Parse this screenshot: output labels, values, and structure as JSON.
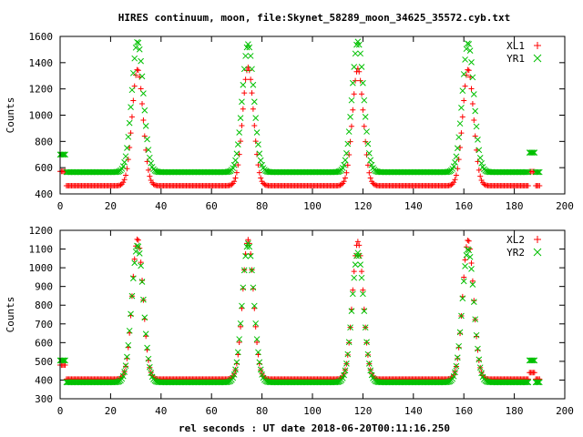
{
  "title": "HIRES continuum, moon, file:Skynet_58289_moon_34625_35572.cyb.txt",
  "xlabel": "rel seconds : UT date 2018-06-20T00:11:16.250",
  "colors": {
    "red": "#ff0000",
    "green": "#00c000"
  },
  "chart_data": [
    {
      "type": "scatter",
      "ylabel": "Counts",
      "xlim": [
        0,
        200
      ],
      "ylim": [
        400,
        1600
      ],
      "xticks": [
        0,
        20,
        40,
        60,
        80,
        100,
        120,
        140,
        160,
        180,
        200
      ],
      "yticks": [
        400,
        600,
        800,
        1000,
        1200,
        1400,
        1600
      ],
      "legend_position": "top-right",
      "series": [
        {
          "name": "XL1",
          "marker": "plus",
          "color": "#ff0000",
          "baseline": 462,
          "gaps": [
            [
              0,
              2,
              572
            ],
            [
              186,
              188,
              570
            ]
          ],
          "peaks": [
            {
              "x": 30.7,
              "y": 1350,
              "halfwidth": 4.5
            },
            {
              "x": 74.5,
              "y": 1365,
              "halfwidth": 4.5
            },
            {
              "x": 118.0,
              "y": 1355,
              "halfwidth": 4.5
            },
            {
              "x": 161.7,
              "y": 1350,
              "halfwidth": 4.5
            }
          ],
          "x_range": [
            0,
            190
          ]
        },
        {
          "name": "YR1",
          "marker": "cross",
          "color": "#00c000",
          "baseline": 566,
          "gaps": [
            [
              0,
              2,
              700
            ],
            [
              186,
              188,
              715
            ]
          ],
          "peaks": [
            {
              "x": 30.7,
              "y": 1560,
              "halfwidth": 4.8
            },
            {
              "x": 74.5,
              "y": 1540,
              "halfwidth": 4.8
            },
            {
              "x": 118.0,
              "y": 1560,
              "halfwidth": 4.8
            },
            {
              "x": 161.7,
              "y": 1550,
              "halfwidth": 4.8
            }
          ],
          "x_range": [
            0,
            190
          ]
        }
      ]
    },
    {
      "type": "scatter",
      "ylabel": "Counts",
      "xlim": [
        0,
        200
      ],
      "ylim": [
        300,
        1200
      ],
      "xticks": [
        0,
        20,
        40,
        60,
        80,
        100,
        120,
        140,
        160,
        180,
        200
      ],
      "yticks": [
        300,
        400,
        500,
        600,
        700,
        800,
        900,
        1000,
        1100,
        1200
      ],
      "legend_position": "top-right",
      "series": [
        {
          "name": "XL2",
          "marker": "plus",
          "color": "#ff0000",
          "baseline": 405,
          "gaps": [
            [
              0,
              2,
              480
            ],
            [
              186,
              188,
              440
            ]
          ],
          "peaks": [
            {
              "x": 30.7,
              "y": 1155,
              "halfwidth": 4.5
            },
            {
              "x": 74.5,
              "y": 1150,
              "halfwidth": 4.5
            },
            {
              "x": 118.0,
              "y": 1140,
              "halfwidth": 4.5
            },
            {
              "x": 161.7,
              "y": 1150,
              "halfwidth": 4.5
            }
          ],
          "x_range": [
            0,
            190
          ]
        },
        {
          "name": "YR2",
          "marker": "cross",
          "color": "#00c000",
          "baseline": 388,
          "gaps": [
            [
              0,
              2,
              505
            ],
            [
              186,
              188,
              505
            ]
          ],
          "peaks": [
            {
              "x": 30.7,
              "y": 1120,
              "halfwidth": 4.8
            },
            {
              "x": 74.5,
              "y": 1130,
              "halfwidth": 4.8
            },
            {
              "x": 118.0,
              "y": 1080,
              "halfwidth": 4.8
            },
            {
              "x": 161.7,
              "y": 1100,
              "halfwidth": 4.8
            }
          ],
          "x_range": [
            0,
            190
          ]
        }
      ]
    }
  ]
}
